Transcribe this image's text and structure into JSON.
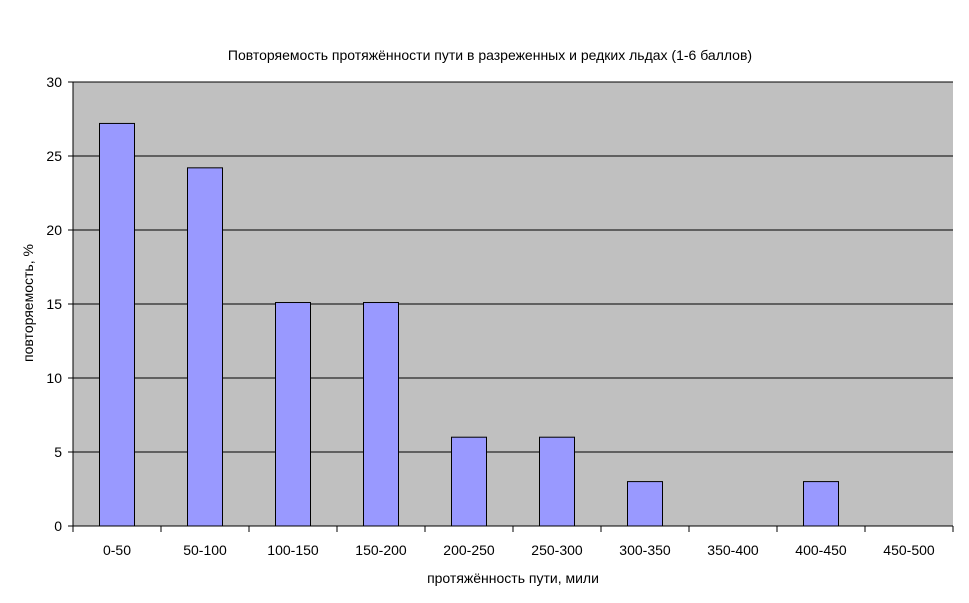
{
  "chart_data": {
    "type": "bar",
    "title": "Повторяемость протяжённости пути в разреженных и редких льдах (1-6 баллов)",
    "xlabel": "протяжённость пути, мили",
    "ylabel": "повторяемость, %",
    "categories": [
      "0-50",
      "50-100",
      "100-150",
      "150-200",
      "200-250",
      "250-300",
      "300-350",
      "350-400",
      "400-450",
      "450-500"
    ],
    "values": [
      27.2,
      24.2,
      15.1,
      15.1,
      6.0,
      6.0,
      3.0,
      0,
      3.0,
      0
    ],
    "ylim": [
      0,
      30
    ],
    "yticks": [
      "0",
      "5",
      "10",
      "15",
      "20",
      "25",
      "30"
    ],
    "grid": true,
    "legend": "none",
    "colors": {
      "plot_background": "#c0c0c0",
      "bar_fill": "#9999ff",
      "bar_stroke": "#000000",
      "gridline": "#000000"
    }
  }
}
